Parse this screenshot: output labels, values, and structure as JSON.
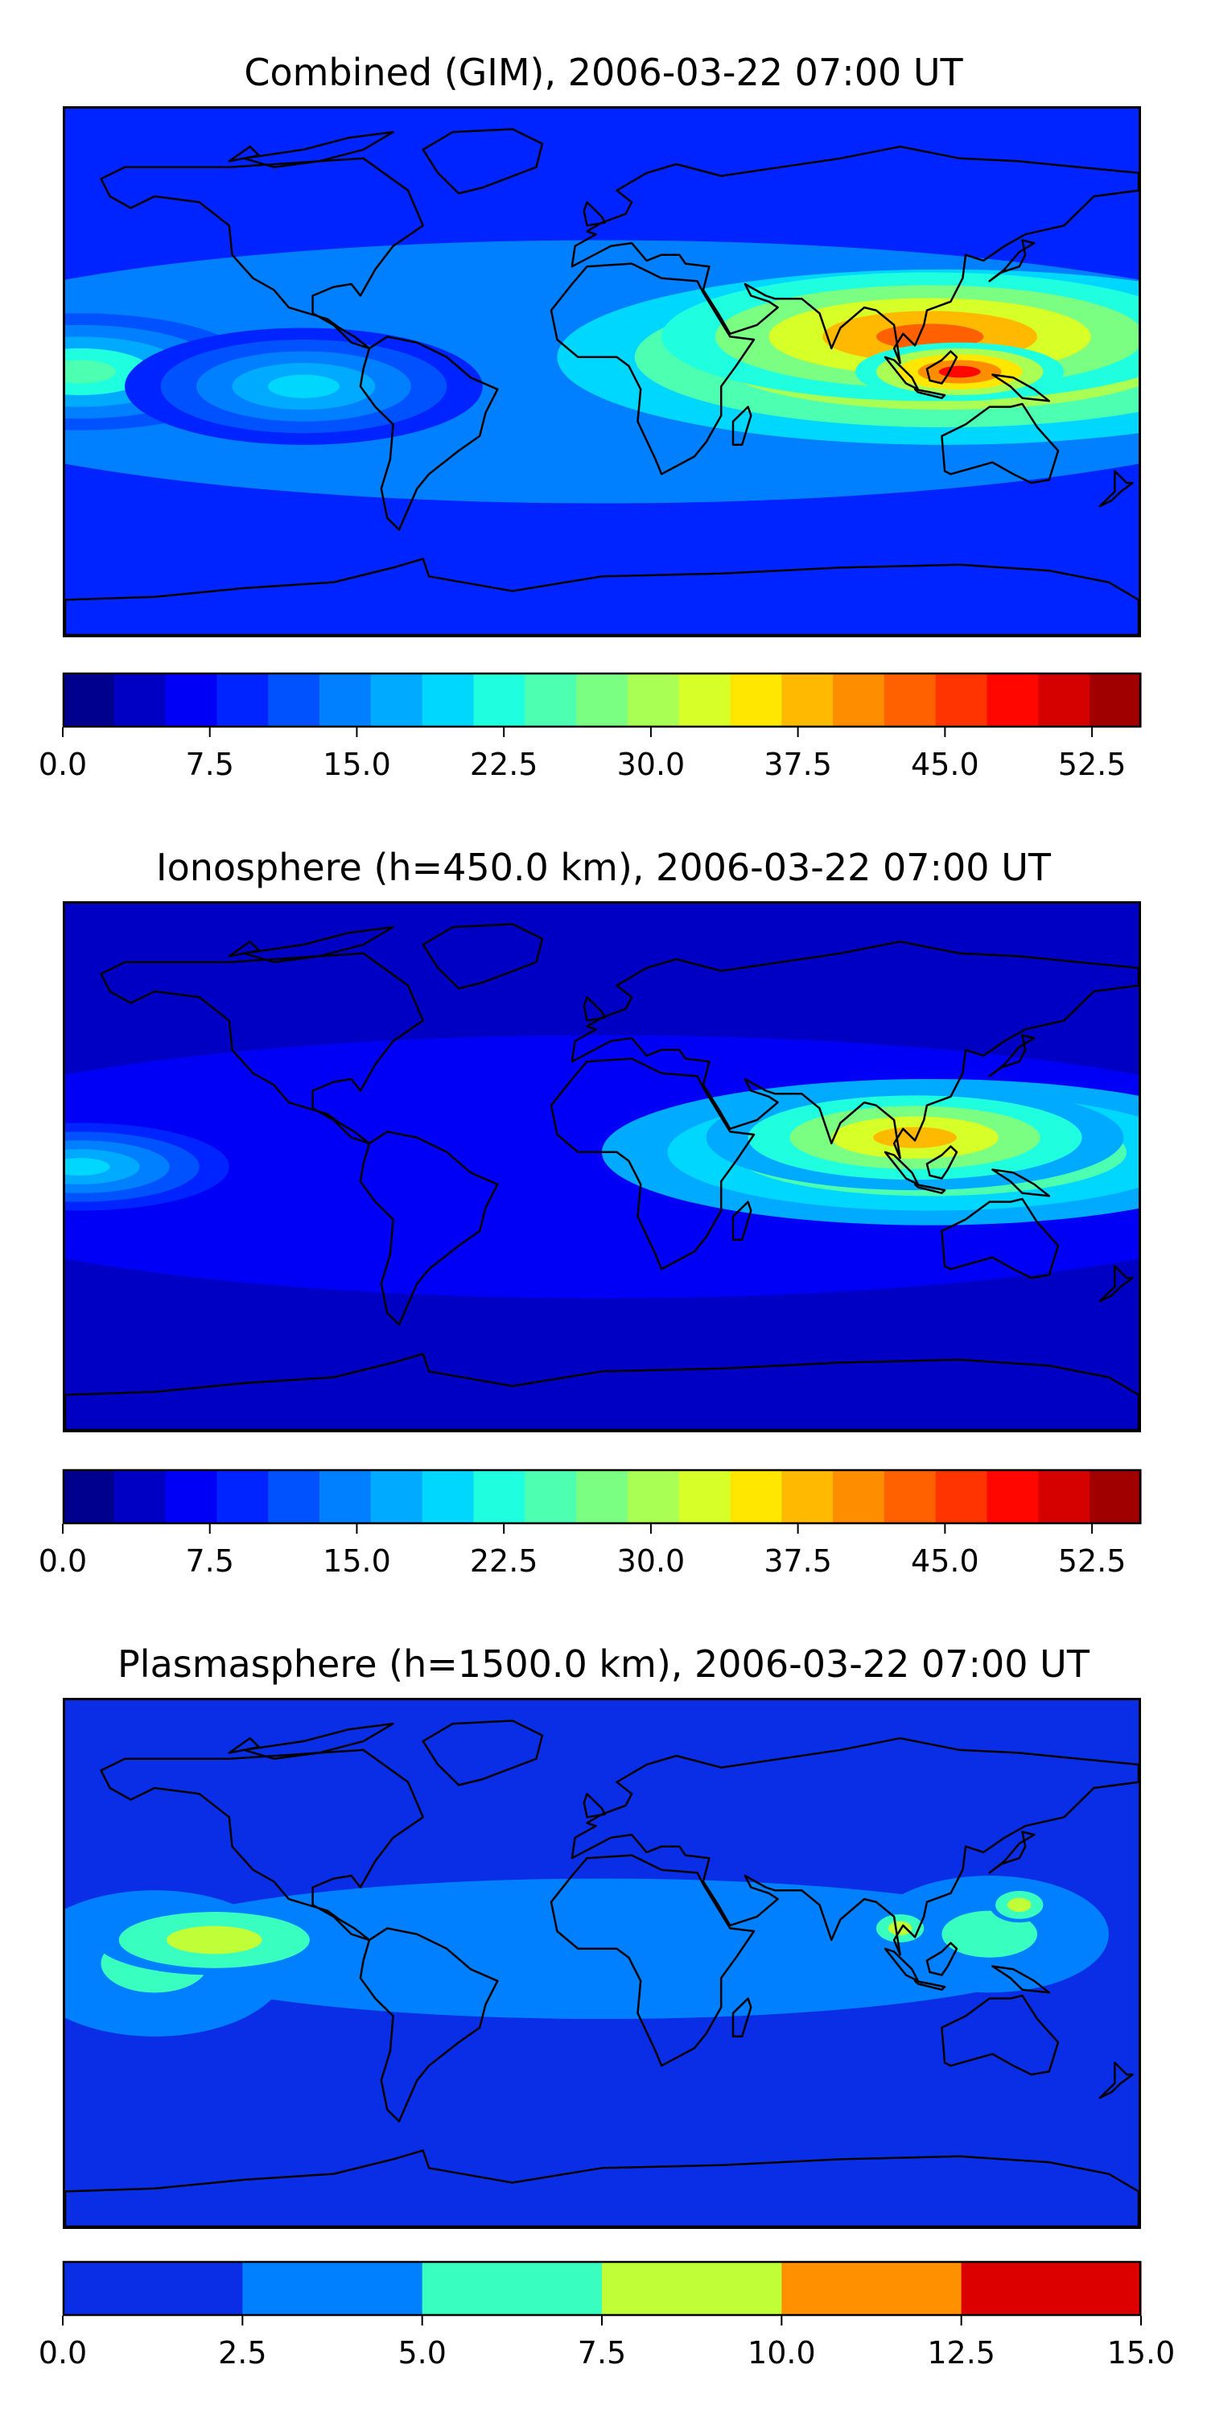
{
  "panels": [
    {
      "title": "Combined (GIM), 2006-03-22 07:00 UT",
      "colorbar": {
        "colors": [
          "#00008f",
          "#0000c4",
          "#0000f6",
          "#0024ff",
          "#0052ff",
          "#0080ff",
          "#00abff",
          "#00d7ff",
          "#1fffdf",
          "#4dffb1",
          "#7bff83",
          "#aaff55",
          "#d7ff28",
          "#ffe700",
          "#ffba00",
          "#ff8d00",
          "#ff6000",
          "#ff3400",
          "#ff0700",
          "#d50000",
          "#a00000"
        ],
        "vmin": 0.0,
        "vmax": 55.0,
        "ticks": [
          0.0,
          7.5,
          15.0,
          22.5,
          30.0,
          37.5,
          45.0,
          52.5
        ],
        "tick_labels": [
          "0.0",
          "7.5",
          "15.0",
          "22.5",
          "30.0",
          "37.5",
          "45.0",
          "52.5"
        ]
      },
      "blobs": [
        {
          "lon": 115,
          "lat": 5,
          "rx": 130,
          "ry": 30,
          "level": 0.72
        },
        {
          "lon": 110,
          "lat": 12,
          "rx": 90,
          "ry": 22,
          "level": 0.8
        },
        {
          "lon": 120,
          "lat": 0,
          "rx": 35,
          "ry": 10,
          "level": 0.86
        },
        {
          "lon": -175,
          "lat": 0,
          "rx": 60,
          "ry": 20,
          "level": 0.45
        },
        {
          "lon": -100,
          "lat": -5,
          "rx": 60,
          "ry": 20,
          "level": 0.35
        }
      ],
      "base_level": 0.18
    },
    {
      "title": "Ionosphere  (h=450.0 km), 2006-03-22 07:00 UT",
      "colorbar": {
        "colors": [
          "#00008f",
          "#0000c4",
          "#0000f6",
          "#0024ff",
          "#0052ff",
          "#0080ff",
          "#00abff",
          "#00d7ff",
          "#1fffdf",
          "#4dffb1",
          "#7bff83",
          "#aaff55",
          "#d7ff28",
          "#ffe700",
          "#ffba00",
          "#ff8d00",
          "#ff6000",
          "#ff3400",
          "#ff0700",
          "#d50000",
          "#a00000"
        ],
        "vmin": 0.0,
        "vmax": 55.0,
        "ticks": [
          0.0,
          7.5,
          15.0,
          22.5,
          30.0,
          37.5,
          45.0,
          52.5
        ],
        "tick_labels": [
          "0.0",
          "7.5",
          "15.0",
          "22.5",
          "30.0",
          "37.5",
          "45.0",
          "52.5"
        ]
      },
      "blobs": [
        {
          "lon": 110,
          "lat": 5,
          "rx": 110,
          "ry": 25,
          "level": 0.62
        },
        {
          "lon": 105,
          "lat": 10,
          "rx": 70,
          "ry": 18,
          "level": 0.68
        },
        {
          "lon": -175,
          "lat": 0,
          "rx": 50,
          "ry": 15,
          "level": 0.35
        }
      ],
      "base_level": 0.08
    },
    {
      "title": "Plasmasphere (h=1500.0 km), 2006-03-22 07:00 UT",
      "colorbar": {
        "colors": [
          "#0a2ee6",
          "#0080ff",
          "#38ffc0",
          "#c0ff38",
          "#ff9000",
          "#dd0000"
        ],
        "vmin": 0.0,
        "vmax": 15.0,
        "ticks": [
          0.0,
          2.5,
          5.0,
          7.5,
          10.0,
          12.5,
          15.0
        ],
        "tick_labels": [
          "0.0",
          "2.5",
          "5.0",
          "7.5",
          "10.0",
          "12.5",
          "15.0"
        ]
      },
      "blobs": [
        {
          "lon": 0,
          "lat": 5,
          "rx": 200,
          "ry": 30,
          "level": 0.28
        },
        {
          "lon": -150,
          "lat": 0,
          "rx": 45,
          "ry": 25,
          "level": 0.45
        },
        {
          "lon": -130,
          "lat": 8,
          "rx": 40,
          "ry": 12,
          "level": 0.6
        },
        {
          "lon": 130,
          "lat": 10,
          "rx": 40,
          "ry": 20,
          "level": 0.42
        },
        {
          "lon": 140,
          "lat": 20,
          "rx": 10,
          "ry": 6,
          "level": 0.6
        },
        {
          "lon": 100,
          "lat": 12,
          "rx": 10,
          "ry": 6,
          "level": 0.6
        }
      ],
      "base_level": 0.05
    }
  ]
}
